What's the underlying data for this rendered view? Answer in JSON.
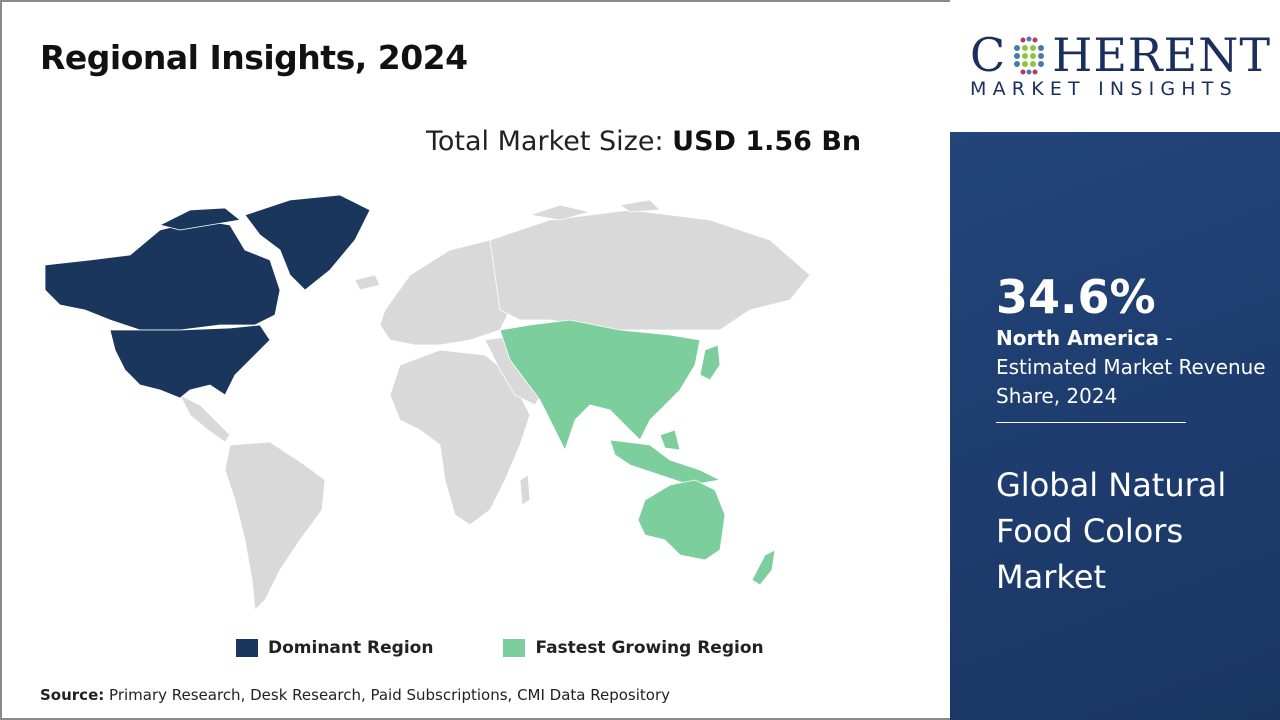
{
  "header": {
    "title": "Regional Insights, 2024"
  },
  "market_size": {
    "label": "Total Market Size:",
    "value": "USD 1.56 Bn"
  },
  "map": {
    "colors": {
      "dominant": "#1b365d",
      "fastest": "#7ccf9c",
      "other": "#d9d9d9"
    },
    "dominant_region": "North America",
    "fastest_growing_region": "Asia Pacific"
  },
  "legend": [
    {
      "label": "Dominant Region",
      "color": "#1b365d"
    },
    {
      "label": "Fastest Growing Region",
      "color": "#7ccf9c"
    }
  ],
  "source": {
    "label": "Source:",
    "text": "Primary Research, Desk Research, Paid Subscriptions, CMI Data Repository"
  },
  "logo": {
    "main_before": "C",
    "main_after": "HERENT",
    "sub": "MARKET INSIGHTS"
  },
  "panel": {
    "share": "34.6%",
    "region": "North America",
    "desc": " - Estimated Market Revenue Share, 2024",
    "report_title": "Global Natural Food Colors Market",
    "background": "#1f3f6e"
  }
}
